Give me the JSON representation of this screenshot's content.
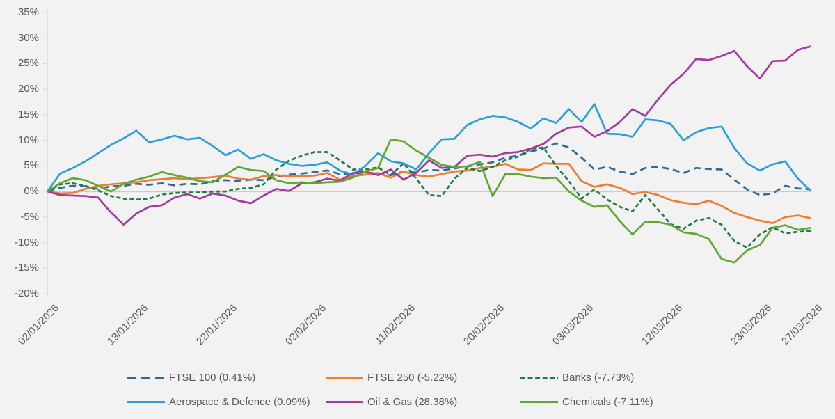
{
  "chart_data": {
    "type": "line",
    "title": "",
    "background_color": "#f2f2f2",
    "label_color": "#595959",
    "axis_color": "#d9d9d9",
    "zero_line_color": "#cbcbcb",
    "legend_position": "bottom",
    "grid": "zero-line-only",
    "y_axis": {
      "min": -20,
      "max": 35,
      "tick_step": 5,
      "tick_values": [
        35,
        30,
        25,
        20,
        15,
        10,
        5,
        0,
        -5,
        -10,
        -15,
        -20
      ],
      "tick_labels": [
        "35%",
        "30%",
        "25%",
        "20%",
        "15%",
        "10%",
        "5%",
        "0%",
        "-5%",
        "-10%",
        "-15%",
        "-20%"
      ]
    },
    "x_axis": {
      "tick_labels": [
        "02/01/2026",
        "13/01/2026",
        "22/01/2026",
        "02/02/2026",
        "11/02/2026",
        "20/02/2026",
        "03/03/2026",
        "12/03/2026",
        "23/03/2026",
        "27/03/2026"
      ],
      "tick_indices": [
        0,
        7,
        14,
        21,
        28,
        35,
        42,
        49,
        56,
        60
      ],
      "dates": [
        "02/01/2026",
        "05/01/2026",
        "06/01/2026",
        "07/01/2026",
        "08/01/2026",
        "09/01/2026",
        "12/01/2026",
        "13/01/2026",
        "14/01/2026",
        "15/01/2026",
        "16/01/2026",
        "19/01/2026",
        "20/01/2026",
        "21/01/2026",
        "22/01/2026",
        "23/01/2026",
        "26/01/2026",
        "27/01/2026",
        "28/01/2026",
        "29/01/2026",
        "30/01/2026",
        "02/02/2026",
        "03/02/2026",
        "04/02/2026",
        "05/02/2026",
        "06/02/2026",
        "09/02/2026",
        "10/02/2026",
        "11/02/2026",
        "12/02/2026",
        "13/02/2026",
        "16/02/2026",
        "17/02/2026",
        "18/02/2026",
        "19/02/2026",
        "20/02/2026",
        "23/02/2026",
        "24/02/2026",
        "25/02/2026",
        "26/02/2026",
        "27/02/2026",
        "02/03/2026",
        "03/03/2026",
        "04/03/2026",
        "05/03/2026",
        "06/03/2026",
        "09/03/2026",
        "10/03/2026",
        "11/03/2026",
        "12/03/2026",
        "13/03/2026",
        "16/03/2026",
        "17/03/2026",
        "18/03/2026",
        "19/03/2026",
        "20/03/2026",
        "23/03/2026",
        "24/03/2026",
        "25/03/2026",
        "26/03/2026",
        "27/03/2026"
      ]
    },
    "series": [
      {
        "name": "FTSE 100",
        "legend_label": "FTSE 100 (0.41%)",
        "final_value_pct": 0.41,
        "color": "#2f6b96",
        "line_style": "long-dash",
        "values": [
          0,
          0.7,
          1.1,
          1.0,
          0.5,
          1.0,
          1.1,
          1.5,
          1.3,
          1.6,
          1.2,
          1.5,
          1.4,
          2.0,
          2.2,
          2.0,
          2.3,
          2.2,
          2.9,
          3.3,
          3.5,
          3.8,
          4.1,
          3.4,
          3.5,
          3.7,
          3.5,
          3.2,
          3.9,
          3.7,
          4.2,
          4.1,
          4.5,
          4.9,
          5.3,
          5.7,
          6.6,
          7.0,
          7.8,
          8.4,
          9.4,
          8.6,
          6.6,
          4.3,
          4.8,
          3.9,
          3.4,
          4.6,
          4.8,
          4.4,
          3.6,
          4.6,
          4.4,
          4.3,
          2.3,
          0.4,
          -0.7,
          -0.4,
          1.1,
          0.6,
          0.41
        ]
      },
      {
        "name": "FTSE 250",
        "legend_label": "FTSE 250 (-5.22%)",
        "final_value_pct": -5.22,
        "color": "#ed7d31",
        "line_style": "solid",
        "values": [
          0,
          -0.4,
          -0.3,
          0.5,
          1.1,
          1.4,
          1.6,
          1.8,
          2.2,
          2.4,
          2.6,
          2.4,
          2.6,
          2.8,
          3.1,
          2.5,
          2.3,
          3.0,
          3.2,
          3.0,
          3.0,
          3.1,
          3.6,
          2.3,
          3.0,
          3.3,
          3.6,
          2.7,
          3.9,
          3.2,
          2.9,
          3.4,
          3.9,
          4.1,
          4.6,
          4.8,
          5.4,
          4.3,
          4.2,
          5.5,
          5.4,
          5.4,
          2.0,
          0.9,
          1.4,
          0.7,
          -0.5,
          -0.1,
          -0.7,
          -1.7,
          -2.2,
          -2.5,
          -1.8,
          -2.8,
          -4.2,
          -5.0,
          -5.7,
          -6.2,
          -5.0,
          -4.7,
          -5.22
        ]
      },
      {
        "name": "Banks",
        "legend_label": "Banks (-7.73%)",
        "final_value_pct": -7.73,
        "color": "#1f7a44",
        "line_style": "short-dash",
        "values": [
          0,
          1.4,
          1.6,
          1.1,
          0.2,
          -0.9,
          -1.4,
          -1.6,
          -1.4,
          -0.6,
          -0.3,
          -0.2,
          -0.2,
          0.0,
          0.0,
          0.5,
          0.7,
          1.4,
          4.3,
          6.0,
          7.0,
          7.7,
          7.7,
          6.1,
          4.3,
          4.3,
          4.7,
          3.2,
          5.5,
          2.5,
          -0.7,
          -0.9,
          2.5,
          4.6,
          4.0,
          4.8,
          6.1,
          6.8,
          8.3,
          8.6,
          5.0,
          2.0,
          -1.4,
          0.4,
          -1.6,
          -3.0,
          -3.9,
          -0.7,
          -3.5,
          -6.4,
          -7.3,
          -5.7,
          -5.2,
          -6.5,
          -9.7,
          -11.0,
          -8.4,
          -7.0,
          -8.2,
          -7.9,
          -7.73
        ]
      },
      {
        "name": "Aerospace & Defence",
        "legend_label": "Aerospace & Defence (0.09%)",
        "final_value_pct": 0.09,
        "color": "#2aa0d8",
        "line_style": "solid",
        "values": [
          0,
          3.5,
          4.6,
          5.9,
          7.5,
          9.1,
          10.4,
          11.9,
          9.6,
          10.2,
          10.9,
          10.2,
          10.5,
          8.9,
          7.1,
          8.2,
          6.4,
          7.3,
          6.1,
          5.4,
          5.0,
          5.2,
          5.7,
          4.1,
          3.3,
          5.0,
          7.5,
          5.9,
          5.5,
          4.3,
          7.5,
          10.2,
          10.3,
          13.0,
          14.1,
          14.8,
          14.5,
          13.6,
          12.3,
          14.3,
          13.4,
          16.1,
          13.6,
          17.1,
          11.3,
          11.2,
          10.7,
          14.1,
          13.9,
          13.2,
          10.0,
          11.6,
          12.4,
          12.7,
          8.5,
          5.5,
          4.1,
          5.3,
          5.9,
          2.5,
          0.09
        ]
      },
      {
        "name": "Oil & Gas",
        "legend_label": "Oil & Gas (28.38%)",
        "final_value_pct": 28.38,
        "color": "#a33a9c",
        "line_style": "solid",
        "values": [
          0,
          -0.7,
          -0.8,
          -0.9,
          -1.2,
          -4.1,
          -6.5,
          -4.3,
          -3.0,
          -2.7,
          -1.2,
          -0.5,
          -1.4,
          -0.4,
          -0.8,
          -1.8,
          -2.3,
          -0.8,
          0.5,
          0.1,
          1.6,
          1.8,
          2.5,
          2.1,
          3.6,
          3.9,
          3.2,
          4.3,
          2.3,
          3.6,
          6.1,
          4.6,
          4.8,
          7.0,
          7.2,
          6.8,
          7.5,
          7.7,
          8.4,
          9.3,
          11.3,
          12.5,
          12.7,
          10.7,
          11.8,
          13.6,
          16.1,
          14.8,
          18.0,
          20.9,
          23.0,
          25.9,
          25.7,
          26.5,
          27.5,
          24.5,
          22.1,
          25.5,
          25.6,
          27.7,
          28.38
        ]
      },
      {
        "name": "Chemicals",
        "legend_label": "Chemicals (-7.11%)",
        "final_value_pct": -7.11,
        "color": "#5fa831",
        "line_style": "solid",
        "values": [
          0,
          1.6,
          2.6,
          2.2,
          1.1,
          0.0,
          1.5,
          2.3,
          2.9,
          3.8,
          3.2,
          2.7,
          2.0,
          1.8,
          3.3,
          4.8,
          4.2,
          4.0,
          2.2,
          1.6,
          1.8,
          1.6,
          1.8,
          1.9,
          2.7,
          3.9,
          4.6,
          10.2,
          9.8,
          8.0,
          6.6,
          5.2,
          4.8,
          4.9,
          5.8,
          -0.9,
          3.4,
          3.4,
          2.9,
          2.6,
          2.7,
          0.0,
          -1.8,
          -3.0,
          -2.7,
          -5.8,
          -8.4,
          -5.9,
          -6.0,
          -6.5,
          -8.0,
          -8.3,
          -9.3,
          -13.2,
          -13.9,
          -11.5,
          -10.5,
          -7.1,
          -6.6,
          -7.5,
          -7.11
        ]
      }
    ]
  }
}
